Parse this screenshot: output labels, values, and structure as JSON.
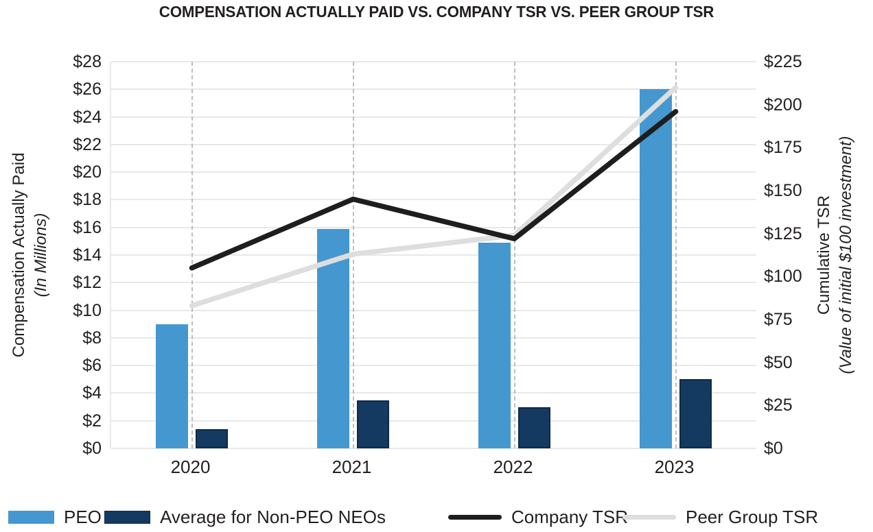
{
  "title": "COMPENSATION ACTUALLY PAID VS. COMPANY TSR VS. PEER GROUP TSR",
  "chart_data": {
    "type": "bar+line",
    "categories": [
      "2020",
      "2021",
      "2022",
      "2023"
    ],
    "bar_series": [
      {
        "key": "peo",
        "name": "PEO",
        "axis": "left",
        "color": "#4498cf",
        "border_color": "#4498cf",
        "values": [
          9.0,
          15.9,
          14.9,
          26.0
        ]
      },
      {
        "key": "non-peo-neos",
        "name": "Average for Non-PEO NEOs",
        "axis": "left",
        "color": "#143a61",
        "border_color": "#0d2a47",
        "values": [
          1.4,
          3.5,
          3.0,
          5.0
        ]
      }
    ],
    "line_series": [
      {
        "key": "company-tsr",
        "name": "Company TSR",
        "axis": "right",
        "color": "#1e1e1e",
        "values": [
          105,
          145,
          122,
          196
        ]
      },
      {
        "key": "peer-group-tsr",
        "name": "Peer Group TSR",
        "axis": "right",
        "color": "#dedede",
        "values": [
          83,
          113,
          124,
          210
        ]
      }
    ],
    "left_axis": {
      "title": "Compensation Actually Paid",
      "subtitle": "(In Millions)",
      "min": 0,
      "max": 28,
      "step": 2,
      "ticks": [
        "$0",
        "$2",
        "$4",
        "$6",
        "$8",
        "$10",
        "$12",
        "$14",
        "$16",
        "$18",
        "$20",
        "$22",
        "$24",
        "$26",
        "$28"
      ]
    },
    "right_axis": {
      "title": "Cumulative TSR",
      "subtitle": "(Value of initial $100 investment)",
      "min": 0,
      "max": 225,
      "step": 25,
      "ticks": [
        "$0",
        "$25",
        "$50",
        "$75",
        "$100",
        "$125",
        "$150",
        "$175",
        "$200",
        "$225"
      ]
    },
    "grid": "horizontal",
    "vertical_dashed_guides": true,
    "legend_position": "bottom",
    "colors": {
      "gridline": "#e8e8e8",
      "dashed_guide": "#b3b3b3",
      "text": "#231f20"
    }
  }
}
